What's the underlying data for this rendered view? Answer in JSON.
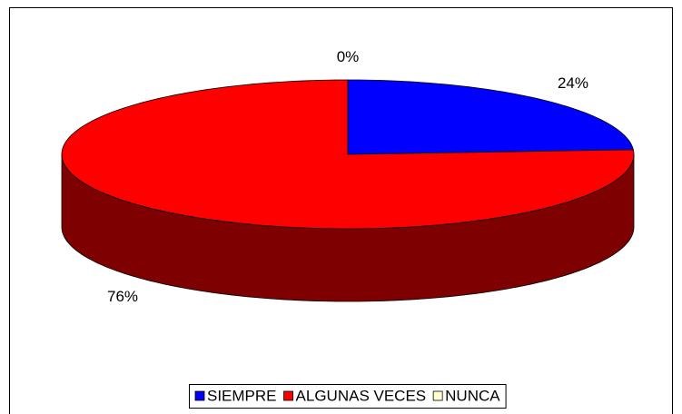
{
  "chart_data": {
    "type": "pie",
    "categories": [
      "SIEMPRE",
      "ALGUNAS VECES",
      "NUNCA"
    ],
    "values": [
      24,
      76,
      0
    ],
    "value_labels": [
      "24%",
      "76%",
      "0%"
    ],
    "colors": [
      "#0000ff",
      "#ff0000",
      "#ffffcc"
    ],
    "legend": "bottom"
  }
}
